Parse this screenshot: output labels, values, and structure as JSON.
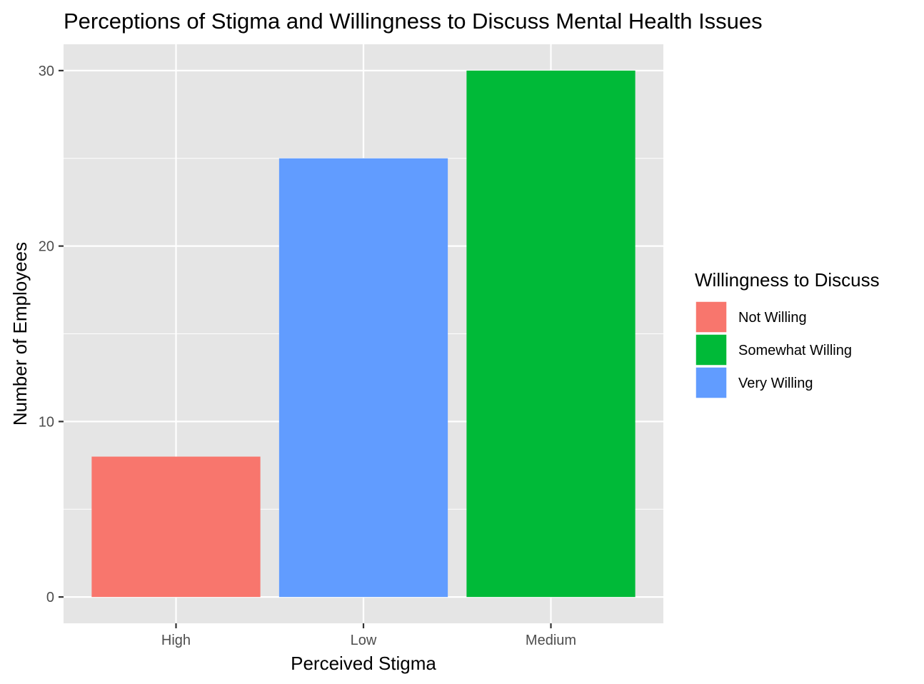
{
  "chart_data": {
    "type": "bar",
    "title": "Perceptions of Stigma and Willingness to Discuss Mental Health Issues",
    "xlabel": "Perceived Stigma",
    "ylabel": "Number of Employees",
    "categories": [
      "High",
      "Low",
      "Medium"
    ],
    "values": [
      8,
      25,
      30
    ],
    "fill_groups": [
      "Not Willing",
      "Very Willing",
      "Somewhat Willing"
    ],
    "ylim": [
      -1.5,
      31.5
    ],
    "y_ticks": [
      0,
      10,
      20,
      30
    ],
    "y_tick_labels": [
      "0",
      "10",
      "20",
      "30"
    ],
    "grid": true,
    "legend": {
      "title": "Willingness to Discuss",
      "position": "right",
      "entries": [
        {
          "label": "Not Willing",
          "color": "#F8766D"
        },
        {
          "label": "Somewhat Willing",
          "color": "#00BA38"
        },
        {
          "label": "Very Willing",
          "color": "#619CFF"
        }
      ]
    },
    "colors": {
      "panel_background": "#E5E5E5",
      "grid": "#FFFFFF",
      "Not Willing": "#F8766D",
      "Somewhat Willing": "#00BA38",
      "Very Willing": "#619CFF"
    }
  }
}
